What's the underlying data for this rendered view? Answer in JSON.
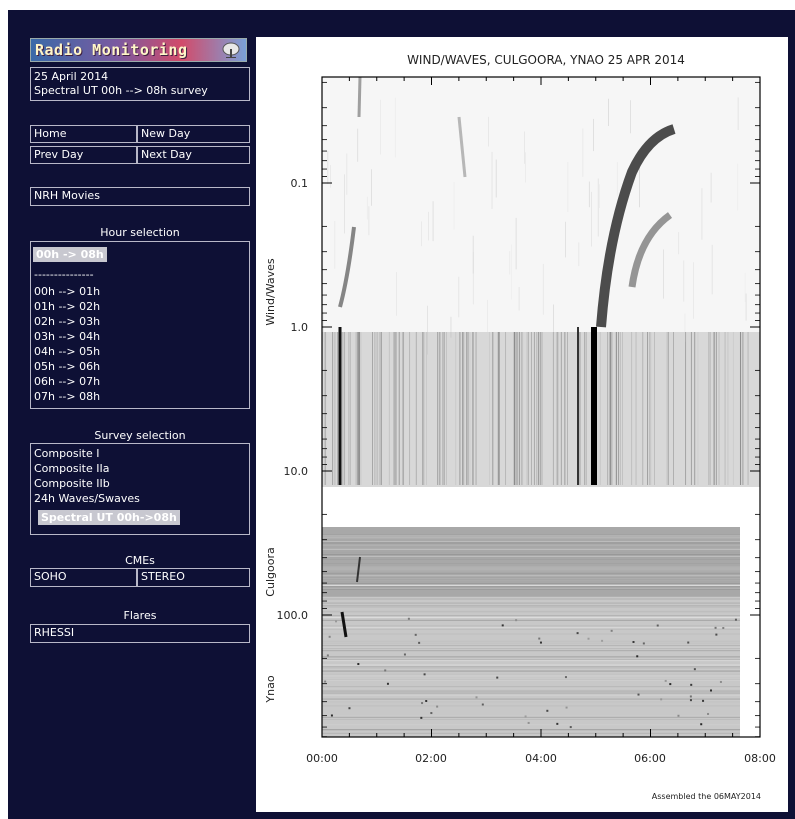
{
  "sidebar": {
    "logo_text": "Radio Monitoring",
    "date_line": "25 April 2014",
    "survey_line": "Spectral UT 00h --> 08h survey",
    "nav": {
      "home": "Home",
      "new_day": "New Day",
      "prev_day": "Prev Day",
      "next_day": "Next Day"
    },
    "nrh_movies": "NRH Movies",
    "hour_selection": {
      "heading": "Hour selection",
      "selected": "00h -> 08h",
      "separator": "---------------",
      "items": [
        "00h --> 01h",
        "01h --> 02h",
        "02h --> 03h",
        "03h --> 04h",
        "04h --> 05h",
        "05h --> 06h",
        "06h --> 07h",
        "07h --> 08h"
      ]
    },
    "survey_selection": {
      "heading": "Survey selection",
      "items": [
        "Composite I",
        "Composite IIa",
        "Composite IIb",
        "24h Waves/Swaves"
      ],
      "selected": "Spectral UT 00h->08h"
    },
    "cmes": {
      "heading": "CMEs",
      "soho": "SOHO",
      "stereo": "STEREO"
    },
    "flares": {
      "heading": "Flares",
      "rhessi": "RHESSI"
    }
  },
  "plot": {
    "title": "WIND/WAVES, CULGOORA, YNAO 25 APR 2014",
    "y_tick_labels": [
      "0.1",
      "1.0",
      "10.0",
      "100.0"
    ],
    "x_tick_labels": [
      "00:00",
      "02:00",
      "04:00",
      "06:00",
      "08:00"
    ],
    "panel_labels": [
      "Wind/Waves",
      "Culgoora",
      "Ynao"
    ],
    "footer": "Assembled the 06MAY2014"
  }
}
